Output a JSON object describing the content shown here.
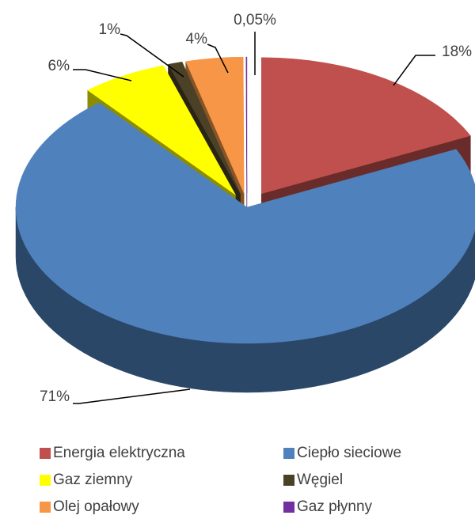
{
  "chart_data": {
    "type": "pie",
    "categories": [
      "Energia elektryczna",
      "Ciepło sieciowe",
      "Gaz ziemny",
      "Węgiel",
      "Olej opałowy",
      "Gaz płynny"
    ],
    "values": [
      18,
      71,
      6,
      1,
      4,
      0.05
    ],
    "value_labels": [
      "18%",
      "71%",
      "6%",
      "1%",
      "4%",
      "0,05%"
    ],
    "colors": [
      "#c0504d",
      "#4f81bd",
      "#ffff00",
      "#4a4126",
      "#f79646",
      "#7030a0"
    ],
    "legend": "bottom"
  }
}
